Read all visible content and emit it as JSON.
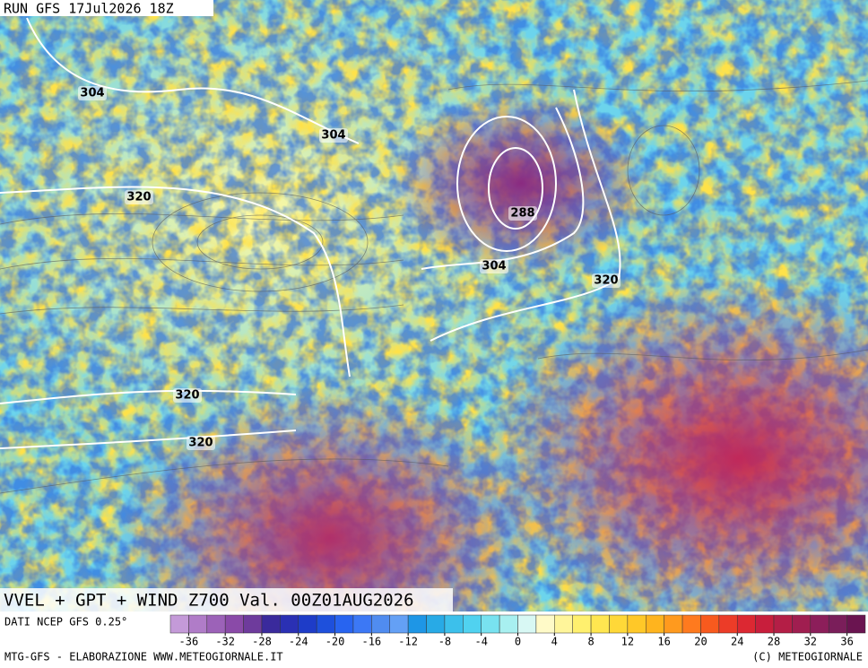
{
  "header": {
    "run": "RUN GFS 17Jul2026 18Z"
  },
  "map": {
    "contour_labels": [
      "304",
      "304",
      "320",
      "288",
      "304",
      "320",
      "320",
      "320"
    ]
  },
  "title": "VVEL + GPT + WIND Z700 Val. 00Z01AUG2026",
  "source": "DATI NCEP GFS 0.25°",
  "colorbar": {
    "colors": [
      "#c49ad8",
      "#b07cc8",
      "#9c62b8",
      "#8a4aa8",
      "#6e3b9c",
      "#3a2a9c",
      "#2a30b4",
      "#1e3cc8",
      "#1e50dc",
      "#2864f0",
      "#3c78f5",
      "#508cf0",
      "#64a0f5",
      "#1e96e6",
      "#28aae6",
      "#3cc0eb",
      "#50d2f0",
      "#78e2f0",
      "#a8f0f0",
      "#d8f8f4",
      "#fffac8",
      "#fff59a",
      "#fff06e",
      "#ffe650",
      "#ffd838",
      "#ffc828",
      "#ffb41e",
      "#ff9a1e",
      "#ff7a1e",
      "#f85a1e",
      "#ec3c28",
      "#dc2832",
      "#c81e3c",
      "#b41e46",
      "#a01e50",
      "#8c1e5a",
      "#7a1e5a",
      "#6a1450"
    ],
    "labels": [
      "-36",
      "-32",
      "-28",
      "-24",
      "-20",
      "-16",
      "-12",
      "-8",
      "-4",
      "0",
      "4",
      "8",
      "12",
      "16",
      "20",
      "24",
      "28",
      "32",
      "36"
    ]
  },
  "footer": {
    "left": "MTG-GFS - ELABORAZIONE WWW.METEOGIORNALE.IT",
    "right": "(C) METEOGIORNALE"
  }
}
